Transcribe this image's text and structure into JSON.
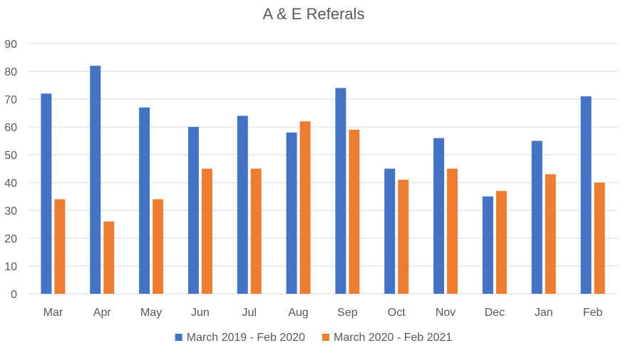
{
  "chart_data": {
    "type": "bar",
    "title": "A & E Referals",
    "xlabel": "",
    "ylabel": "",
    "categories": [
      "Mar",
      "Apr",
      "May",
      "Jun",
      "Jul",
      "Aug",
      "Sep",
      "Oct",
      "Nov",
      "Dec",
      "Jan",
      "Feb"
    ],
    "series": [
      {
        "name": "March 2019 - Feb 2020",
        "color": "#4472c4",
        "values": [
          72,
          82,
          67,
          60,
          64,
          58,
          74,
          45,
          56,
          35,
          55,
          71
        ]
      },
      {
        "name": "March 2020 - Feb 2021",
        "color": "#ed7d31",
        "values": [
          34,
          26,
          34,
          45,
          45,
          62,
          59,
          41,
          45,
          37,
          43,
          40
        ]
      }
    ],
    "ylim": [
      0,
      90
    ],
    "yticks": [
      "0",
      "10",
      "20",
      "30",
      "40",
      "50",
      "60",
      "70",
      "80",
      "90"
    ],
    "grid": true,
    "legend_position": "bottom"
  }
}
